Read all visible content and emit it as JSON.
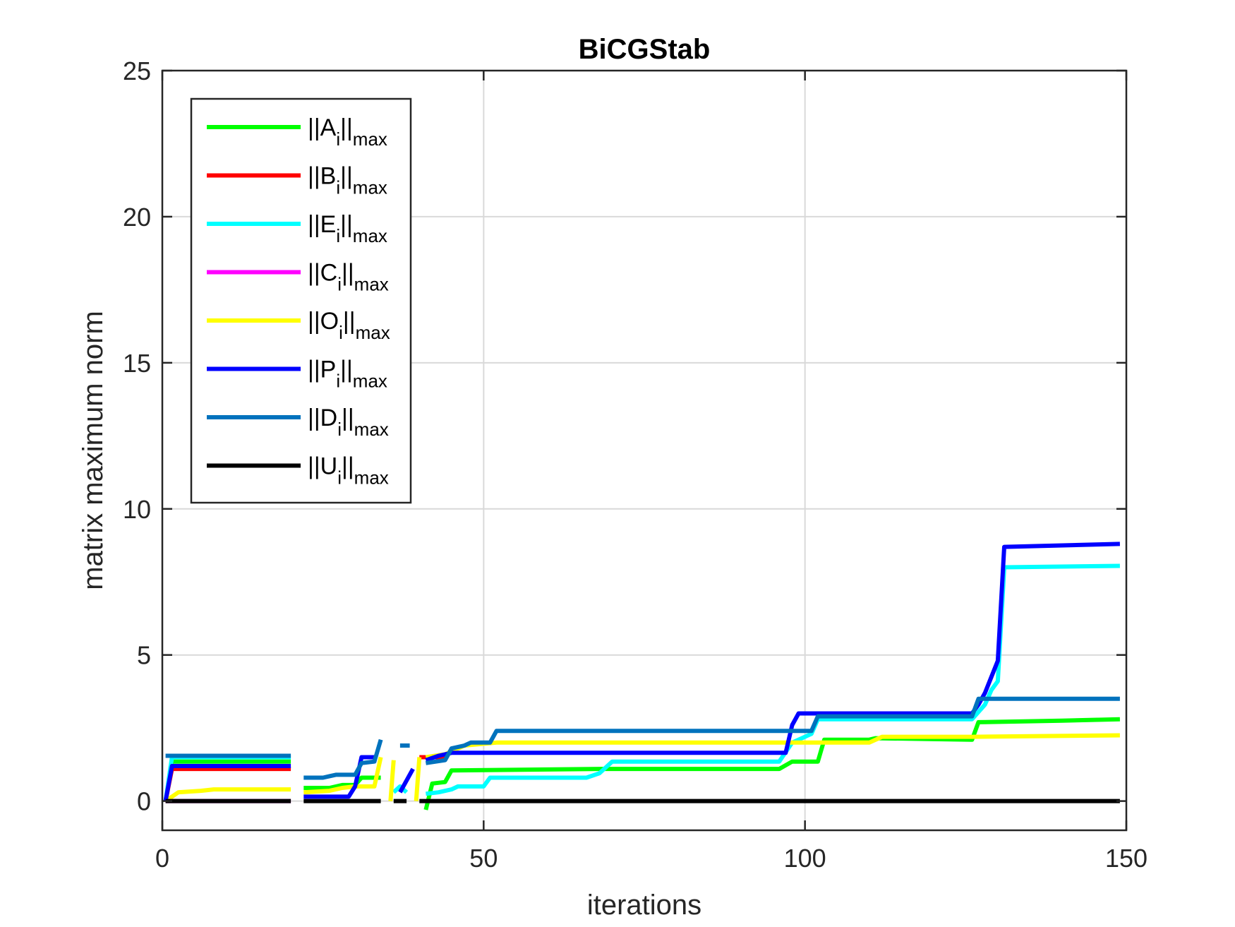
{
  "chart_data": {
    "type": "line",
    "title": "BiCGStab",
    "xlabel": "iterations",
    "ylabel": "matrix maximum norm",
    "xlim": [
      0,
      150
    ],
    "ylim": [
      -1,
      25
    ],
    "xticks": [
      0,
      50,
      100,
      150
    ],
    "yticks": [
      0,
      5,
      10,
      15,
      20,
      25
    ],
    "grid": true,
    "legend_position": "top-left",
    "series": [
      {
        "name": "||A_i||_max",
        "label_main": "||A",
        "label_sub": "i",
        "label_tail": "||",
        "label_sub2": "max",
        "color": "#00ff00",
        "segments": [
          [
            [
              0.5,
              0
            ],
            [
              1.5,
              1.35
            ],
            [
              20,
              1.35
            ]
          ],
          [
            [
              22,
              0.45
            ],
            [
              26,
              0.45
            ],
            [
              28,
              0.55
            ],
            [
              30,
              0.55
            ],
            [
              31,
              0.8
            ],
            [
              34,
              0.8
            ]
          ],
          [
            [
              41,
              -0.3
            ],
            [
              42,
              0.6
            ],
            [
              44,
              0.65
            ],
            [
              45,
              1.05
            ],
            [
              68,
              1.1
            ],
            [
              96,
              1.1
            ],
            [
              98,
              1.35
            ],
            [
              102,
              1.35
            ],
            [
              103,
              2.1
            ],
            [
              110,
              2.1
            ],
            [
              111,
              2.15
            ],
            [
              126,
              2.1
            ],
            [
              127,
              2.7
            ],
            [
              140,
              2.75
            ],
            [
              149,
              2.8
            ]
          ]
        ]
      },
      {
        "name": "||B_i||_max",
        "label_main": "||B",
        "label_sub": "i",
        "label_tail": "||",
        "label_sub2": "max",
        "color": "#ff0000",
        "segments": [
          [
            [
              0.5,
              0
            ],
            [
              1.5,
              1.1
            ],
            [
              20,
              1.1
            ]
          ],
          [
            [
              40,
              1.5
            ],
            [
              44,
              1.5
            ]
          ]
        ]
      },
      {
        "name": "||E_i||_max",
        "label_main": "||E",
        "label_sub": "i",
        "label_tail": "||",
        "label_sub2": "max",
        "color": "#00ffff",
        "segments": [
          [
            [
              0.5,
              0
            ],
            [
              1.5,
              1.5
            ],
            [
              20,
              1.5
            ]
          ],
          [
            [
              36,
              0.3
            ],
            [
              37,
              0.5
            ],
            [
              38,
              0.3
            ]
          ],
          [
            [
              41,
              0.25
            ],
            [
              43,
              0.3
            ],
            [
              45,
              0.4
            ],
            [
              46,
              0.5
            ],
            [
              50,
              0.5
            ],
            [
              51,
              0.8
            ],
            [
              66,
              0.8
            ],
            [
              68,
              0.95
            ],
            [
              70,
              1.35
            ],
            [
              96,
              1.35
            ],
            [
              98,
              2.0
            ],
            [
              101,
              2.3
            ],
            [
              102,
              2.8
            ],
            [
              126,
              2.8
            ],
            [
              128,
              3.3
            ],
            [
              129,
              3.8
            ],
            [
              130,
              4.1
            ],
            [
              131,
              8.0
            ],
            [
              149,
              8.05
            ]
          ]
        ]
      },
      {
        "name": "||C_i||_max",
        "label_main": "||C",
        "label_sub": "i",
        "label_tail": "||",
        "label_sub2": "max",
        "color": "#ff00ff",
        "segments": [
          [
            [
              0.5,
              0
            ],
            [
              20,
              0
            ]
          ]
        ]
      },
      {
        "name": "||O_i||_max",
        "label_main": "||O",
        "label_sub": "i",
        "label_tail": "||",
        "label_sub2": "max",
        "color": "#ffff00",
        "segments": [
          [
            [
              0.5,
              0
            ],
            [
              2.5,
              0.3
            ],
            [
              6,
              0.35
            ],
            [
              8,
              0.4
            ],
            [
              20,
              0.4
            ]
          ],
          [
            [
              22,
              0.3
            ],
            [
              26,
              0.35
            ],
            [
              28,
              0.45
            ],
            [
              30,
              0.5
            ],
            [
              33,
              0.5
            ],
            [
              34,
              1.5
            ]
          ],
          [
            [
              35.5,
              0
            ],
            [
              36,
              1.4
            ]
          ],
          [
            [
              39.5,
              0
            ],
            [
              40,
              1.5
            ]
          ],
          [
            [
              41,
              1.5
            ],
            [
              44,
              1.6
            ],
            [
              47,
              1.9
            ],
            [
              52,
              2.0
            ],
            [
              98,
              2.0
            ],
            [
              102,
              2.0
            ],
            [
              110,
              2.0
            ],
            [
              112,
              2.2
            ],
            [
              126,
              2.2
            ],
            [
              149,
              2.25
            ]
          ]
        ]
      },
      {
        "name": "||P_i||_max",
        "label_main": "||P",
        "label_sub": "i",
        "label_tail": "||",
        "label_sub2": "max",
        "color": "#0000ff",
        "segments": [
          [
            [
              0.5,
              0
            ],
            [
              1.5,
              1.2
            ],
            [
              20,
              1.2
            ]
          ],
          [
            [
              22,
              0.15
            ],
            [
              29,
              0.15
            ],
            [
              30,
              0.5
            ],
            [
              31,
              1.5
            ],
            [
              33,
              1.5
            ]
          ],
          [
            [
              37,
              0.3
            ],
            [
              39,
              1.1
            ]
          ],
          [
            [
              41,
              1.4
            ],
            [
              43,
              1.55
            ],
            [
              45,
              1.65
            ],
            [
              97,
              1.65
            ],
            [
              98,
              2.6
            ],
            [
              99,
              3.0
            ],
            [
              103,
              3.0
            ],
            [
              126,
              3.0
            ],
            [
              127,
              3.3
            ],
            [
              128,
              3.7
            ],
            [
              130,
              4.8
            ],
            [
              131,
              8.7
            ],
            [
              149,
              8.8
            ]
          ]
        ]
      },
      {
        "name": "||D_i||_max",
        "label_main": "||D",
        "label_sub": "i",
        "label_tail": "||",
        "label_sub2": "max",
        "color": "#0072bd",
        "segments": [
          [
            [
              0.5,
              1.55
            ],
            [
              20,
              1.55
            ]
          ],
          [
            [
              22,
              0.8
            ],
            [
              25,
              0.8
            ],
            [
              26,
              0.85
            ],
            [
              27,
              0.9
            ],
            [
              30,
              0.9
            ],
            [
              31,
              1.3
            ],
            [
              33,
              1.35
            ],
            [
              34,
              2.1
            ]
          ],
          [
            [
              37,
              1.9
            ],
            [
              38.5,
              1.9
            ]
          ],
          [
            [
              41,
              1.3
            ],
            [
              44,
              1.4
            ],
            [
              45,
              1.8
            ],
            [
              47,
              1.9
            ],
            [
              48,
              2.0
            ],
            [
              51,
              2.0
            ],
            [
              52,
              2.4
            ],
            [
              98,
              2.4
            ],
            [
              101,
              2.4
            ],
            [
              102,
              2.9
            ],
            [
              126,
              2.9
            ],
            [
              127,
              3.5
            ],
            [
              149,
              3.5
            ]
          ]
        ]
      },
      {
        "name": "||U_i||_max",
        "label_main": "||U",
        "label_sub": "i",
        "label_tail": "||",
        "label_sub2": "max",
        "color": "#000000",
        "segments": [
          [
            [
              0.5,
              0
            ],
            [
              20,
              0
            ]
          ],
          [
            [
              22,
              0
            ],
            [
              34,
              0
            ]
          ],
          [
            [
              36,
              0
            ],
            [
              38,
              0
            ]
          ],
          [
            [
              40,
              0
            ],
            [
              149,
              0
            ]
          ]
        ]
      }
    ]
  }
}
